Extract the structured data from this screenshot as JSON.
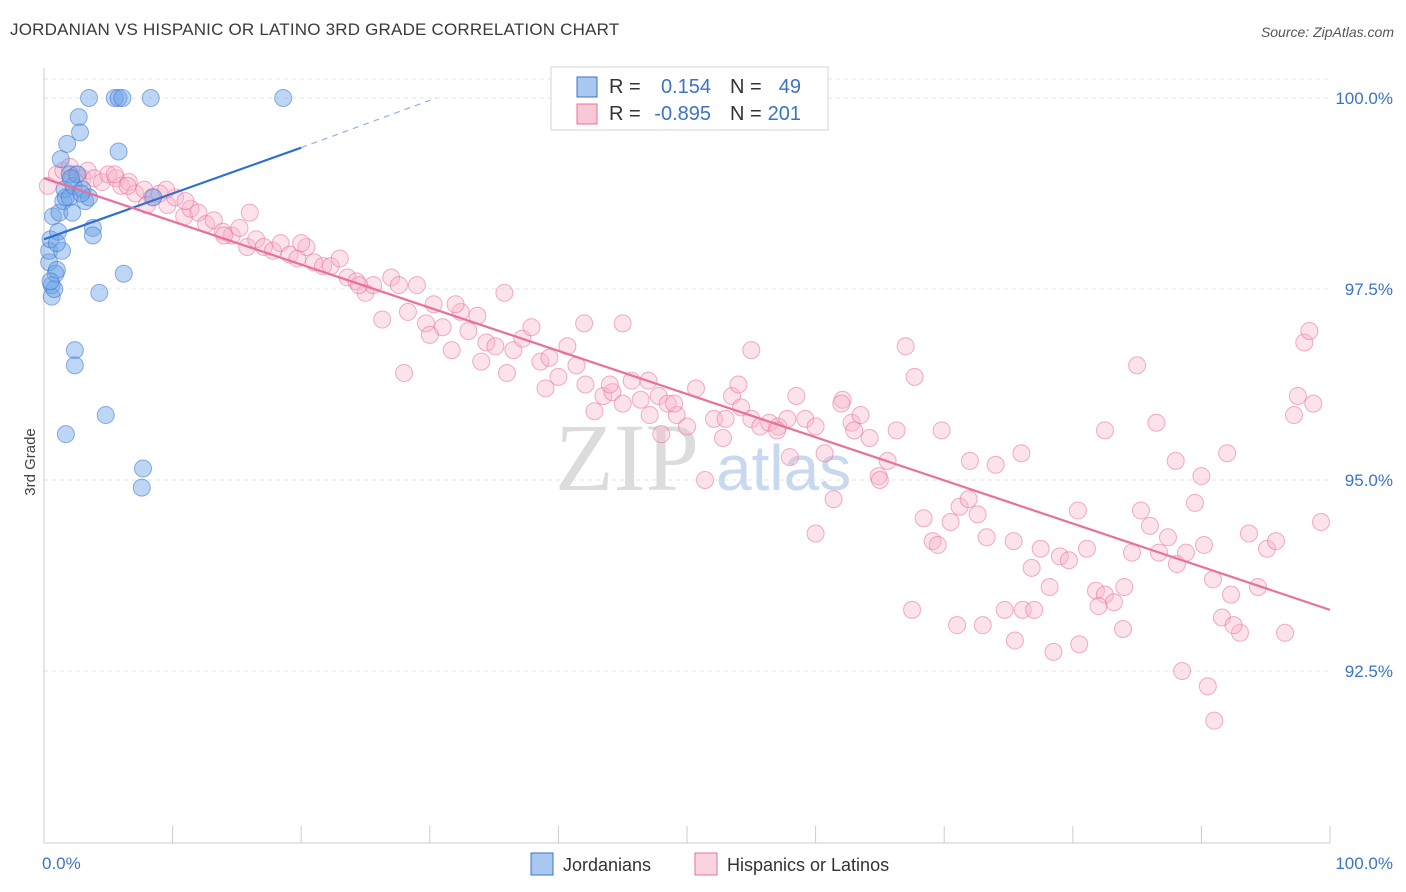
{
  "title": "JORDANIAN VS HISPANIC OR LATINO 3RD GRADE CORRELATION CHART",
  "source": "Source: ZipAtlas.com",
  "watermark": {
    "zip": "ZIP",
    "atlas": "atlas"
  },
  "legend_top": {
    "rows": [
      {
        "r_label": "R =",
        "r_value": "0.154",
        "n_label": "N =",
        "n_value": "49",
        "color": "#6fa4e8"
      },
      {
        "r_label": "R =",
        "r_value": "-0.895",
        "n_label": "N =",
        "n_value": "201",
        "color": "#f29ab9"
      }
    ]
  },
  "chart_data": {
    "type": "scatter",
    "title": "JORDANIAN VS HISPANIC OR LATINO 3RD GRADE CORRELATION CHART",
    "xlabel": "",
    "ylabel": "3rd Grade",
    "xlim": [
      0,
      100
    ],
    "ylim": [
      90.0,
      100.4
    ],
    "x_tick_labels": [
      "0.0%",
      "100.0%"
    ],
    "y_ticks": [
      92.5,
      95.0,
      97.5,
      100.0
    ],
    "y_tick_labels": [
      "92.5%",
      "95.0%",
      "97.5%",
      "100.0%"
    ],
    "series": [
      {
        "name": "Jordanians",
        "color": "#6fa4e8",
        "stroke": "#3c73c8",
        "points": [
          [
            0.4,
            97.85
          ],
          [
            0.4,
            98.0
          ],
          [
            0.5,
            98.15
          ],
          [
            0.6,
            97.4
          ],
          [
            0.6,
            97.55
          ],
          [
            0.7,
            98.45
          ],
          [
            0.8,
            97.5
          ],
          [
            0.9,
            97.7
          ],
          [
            1.0,
            97.75
          ],
          [
            1.1,
            98.25
          ],
          [
            1.2,
            98.5
          ],
          [
            1.3,
            99.2
          ],
          [
            1.4,
            98.0
          ],
          [
            1.5,
            98.65
          ],
          [
            1.6,
            98.8
          ],
          [
            1.7,
            98.7
          ],
          [
            1.8,
            99.4
          ],
          [
            2.0,
            99.0
          ],
          [
            2.0,
            98.7
          ],
          [
            2.2,
            98.5
          ],
          [
            2.3,
            98.85
          ],
          [
            2.4,
            96.7
          ],
          [
            2.4,
            96.5
          ],
          [
            2.6,
            99.0
          ],
          [
            2.7,
            99.75
          ],
          [
            2.8,
            99.55
          ],
          [
            3.0,
            98.8
          ],
          [
            3.2,
            98.65
          ],
          [
            3.5,
            98.7
          ],
          [
            3.8,
            98.3
          ],
          [
            3.8,
            98.2
          ],
          [
            4.3,
            97.45
          ],
          [
            4.8,
            95.85
          ],
          [
            3.5,
            100.0
          ],
          [
            5.5,
            100.0
          ],
          [
            5.8,
            100.0
          ],
          [
            6.1,
            100.0
          ],
          [
            5.8,
            99.3
          ],
          [
            6.2,
            97.7
          ],
          [
            1.7,
            95.6
          ],
          [
            7.7,
            95.15
          ],
          [
            7.6,
            94.9
          ],
          [
            8.3,
            100.0
          ],
          [
            18.6,
            100.0
          ],
          [
            8.5,
            98.7
          ],
          [
            1.0,
            98.1
          ],
          [
            0.5,
            97.6
          ],
          [
            2.9,
            98.75
          ],
          [
            2.1,
            98.95
          ]
        ]
      },
      {
        "name": "Hispanics or Latinos",
        "color": "#f7b6cb",
        "stroke": "#e8709a",
        "points": [
          [
            0.3,
            98.85
          ],
          [
            1.0,
            99.0
          ],
          [
            1.5,
            99.05
          ],
          [
            2.0,
            99.1
          ],
          [
            2.5,
            99.0
          ],
          [
            3.0,
            98.95
          ],
          [
            3.4,
            99.05
          ],
          [
            3.9,
            98.95
          ],
          [
            4.5,
            98.9
          ],
          [
            5.0,
            99.0
          ],
          [
            5.6,
            98.95
          ],
          [
            6.0,
            98.85
          ],
          [
            6.6,
            98.9
          ],
          [
            7.1,
            98.75
          ],
          [
            7.8,
            98.8
          ],
          [
            8.4,
            98.7
          ],
          [
            9.0,
            98.75
          ],
          [
            9.6,
            98.6
          ],
          [
            10.2,
            98.7
          ],
          [
            10.9,
            98.45
          ],
          [
            11.4,
            98.55
          ],
          [
            12.0,
            98.5
          ],
          [
            12.6,
            98.35
          ],
          [
            13.2,
            98.4
          ],
          [
            13.9,
            98.25
          ],
          [
            14.6,
            98.2
          ],
          [
            15.2,
            98.3
          ],
          [
            15.8,
            98.05
          ],
          [
            16.5,
            98.15
          ],
          [
            17.1,
            98.05
          ],
          [
            17.8,
            98.0
          ],
          [
            18.4,
            98.1
          ],
          [
            19.1,
            97.95
          ],
          [
            19.7,
            97.9
          ],
          [
            20.4,
            98.05
          ],
          [
            21.0,
            97.85
          ],
          [
            21.7,
            97.8
          ],
          [
            22.3,
            97.8
          ],
          [
            23.0,
            97.9
          ],
          [
            23.6,
            97.65
          ],
          [
            24.3,
            97.6
          ],
          [
            25.0,
            97.45
          ],
          [
            25.6,
            97.55
          ],
          [
            26.3,
            97.1
          ],
          [
            27.0,
            97.65
          ],
          [
            27.6,
            97.55
          ],
          [
            28.3,
            97.2
          ],
          [
            29.0,
            97.55
          ],
          [
            29.7,
            97.05
          ],
          [
            30.3,
            97.3
          ],
          [
            31.0,
            97.0
          ],
          [
            31.7,
            96.7
          ],
          [
            32.4,
            97.2
          ],
          [
            33.0,
            96.95
          ],
          [
            33.7,
            97.15
          ],
          [
            34.4,
            96.8
          ],
          [
            35.1,
            96.75
          ],
          [
            35.8,
            97.45
          ],
          [
            36.5,
            96.7
          ],
          [
            37.2,
            96.85
          ],
          [
            37.9,
            97.0
          ],
          [
            38.6,
            96.55
          ],
          [
            39.3,
            96.6
          ],
          [
            40.0,
            96.35
          ],
          [
            40.7,
            96.75
          ],
          [
            41.4,
            96.5
          ],
          [
            42.1,
            96.25
          ],
          [
            42.8,
            95.9
          ],
          [
            43.5,
            96.1
          ],
          [
            44.2,
            96.15
          ],
          [
            45.0,
            96.0
          ],
          [
            45.7,
            96.3
          ],
          [
            46.4,
            96.05
          ],
          [
            47.1,
            95.85
          ],
          [
            47.8,
            96.1
          ],
          [
            48.5,
            96.0
          ],
          [
            49.2,
            95.85
          ],
          [
            50.0,
            95.7
          ],
          [
            50.7,
            96.2
          ],
          [
            51.4,
            95.0
          ],
          [
            52.1,
            95.8
          ],
          [
            52.8,
            95.55
          ],
          [
            53.5,
            96.1
          ],
          [
            54.2,
            95.95
          ],
          [
            55.0,
            95.8
          ],
          [
            55.7,
            95.7
          ],
          [
            56.4,
            95.75
          ],
          [
            57.1,
            95.7
          ],
          [
            57.8,
            95.8
          ],
          [
            58.5,
            96.1
          ],
          [
            59.2,
            95.8
          ],
          [
            60.0,
            95.7
          ],
          [
            60.7,
            95.35
          ],
          [
            61.4,
            94.75
          ],
          [
            62.1,
            96.05
          ],
          [
            62.8,
            95.75
          ],
          [
            63.5,
            95.85
          ],
          [
            64.2,
            95.55
          ],
          [
            64.9,
            95.05
          ],
          [
            65.6,
            95.25
          ],
          [
            66.3,
            95.65
          ],
          [
            67.0,
            96.75
          ],
          [
            67.7,
            96.35
          ],
          [
            68.4,
            94.5
          ],
          [
            69.1,
            94.2
          ],
          [
            69.8,
            95.65
          ],
          [
            70.5,
            94.45
          ],
          [
            71.2,
            94.65
          ],
          [
            71.9,
            94.75
          ],
          [
            72.6,
            94.55
          ],
          [
            73.3,
            94.25
          ],
          [
            74.0,
            95.2
          ],
          [
            74.7,
            93.3
          ],
          [
            75.4,
            94.2
          ],
          [
            76.1,
            93.3
          ],
          [
            76.8,
            93.85
          ],
          [
            77.5,
            94.1
          ],
          [
            78.2,
            93.6
          ],
          [
            79.0,
            94.0
          ],
          [
            79.7,
            93.95
          ],
          [
            80.4,
            94.6
          ],
          [
            81.1,
            94.1
          ],
          [
            81.8,
            93.55
          ],
          [
            82.5,
            93.5
          ],
          [
            83.2,
            93.4
          ],
          [
            83.9,
            93.05
          ],
          [
            84.6,
            94.05
          ],
          [
            85.3,
            94.6
          ],
          [
            86.0,
            94.4
          ],
          [
            86.7,
            94.05
          ],
          [
            87.4,
            94.25
          ],
          [
            88.1,
            93.9
          ],
          [
            88.8,
            94.05
          ],
          [
            89.5,
            94.7
          ],
          [
            90.2,
            94.15
          ],
          [
            90.9,
            93.7
          ],
          [
            91.6,
            93.2
          ],
          [
            92.3,
            93.5
          ],
          [
            93.0,
            93.0
          ],
          [
            93.7,
            94.3
          ],
          [
            94.4,
            93.6
          ],
          [
            95.1,
            94.1
          ],
          [
            95.8,
            94.2
          ],
          [
            96.5,
            93.0
          ],
          [
            97.2,
            95.85
          ],
          [
            98.0,
            96.8
          ],
          [
            98.7,
            96.0
          ],
          [
            99.3,
            94.45
          ],
          [
            98.4,
            96.95
          ],
          [
            97.5,
            96.1
          ],
          [
            60.0,
            94.3
          ],
          [
            65.0,
            95.0
          ],
          [
            67.5,
            93.3
          ],
          [
            69.5,
            94.15
          ],
          [
            71.0,
            93.1
          ],
          [
            73.0,
            93.1
          ],
          [
            75.5,
            92.9
          ],
          [
            77.0,
            93.3
          ],
          [
            78.5,
            92.75
          ],
          [
            80.5,
            92.85
          ],
          [
            82.0,
            93.35
          ],
          [
            88.5,
            92.5
          ],
          [
            90.5,
            92.3
          ],
          [
            91.0,
            91.85
          ],
          [
            92.5,
            93.1
          ],
          [
            55.0,
            96.7
          ],
          [
            49.0,
            96.0
          ],
          [
            45.0,
            97.05
          ],
          [
            42.0,
            97.05
          ],
          [
            36.0,
            96.4
          ],
          [
            58.0,
            95.3
          ],
          [
            63.0,
            95.65
          ],
          [
            62.0,
            96.0
          ],
          [
            47.0,
            96.3
          ],
          [
            53.0,
            95.8
          ],
          [
            34.0,
            96.55
          ],
          [
            30.0,
            96.9
          ],
          [
            28.0,
            96.4
          ],
          [
            20.0,
            98.1
          ],
          [
            14.0,
            98.2
          ],
          [
            11.0,
            98.65
          ],
          [
            8.0,
            98.6
          ],
          [
            5.5,
            99.0
          ],
          [
            6.5,
            98.85
          ],
          [
            9.5,
            98.8
          ],
          [
            16.0,
            98.5
          ],
          [
            24.5,
            97.55
          ],
          [
            32.0,
            97.3
          ],
          [
            39.0,
            96.2
          ],
          [
            44.0,
            96.25
          ],
          [
            48.0,
            95.6
          ],
          [
            54.0,
            96.25
          ],
          [
            57.0,
            95.65
          ],
          [
            85.0,
            96.5
          ],
          [
            86.5,
            95.75
          ],
          [
            92.0,
            95.35
          ],
          [
            76.0,
            95.35
          ],
          [
            82.5,
            95.65
          ],
          [
            88.0,
            95.25
          ],
          [
            90.0,
            95.05
          ],
          [
            72.0,
            95.25
          ],
          [
            84.0,
            93.6
          ]
        ]
      }
    ],
    "trendlines": [
      {
        "series": "Jordanians",
        "from": [
          0,
          98.15
        ],
        "to": [
          20,
          99.35
        ],
        "dashed_to": [
          30.5,
          100.0
        ]
      },
      {
        "series": "Hispanics or Latinos",
        "from": [
          0,
          98.95
        ],
        "to": [
          100,
          93.3
        ]
      }
    ]
  },
  "legend_bottom": [
    {
      "label": "Jordanians",
      "color": "#6fa4e8"
    },
    {
      "label": "Hispanics or Latinos",
      "color": "#f7b6cb"
    }
  ]
}
